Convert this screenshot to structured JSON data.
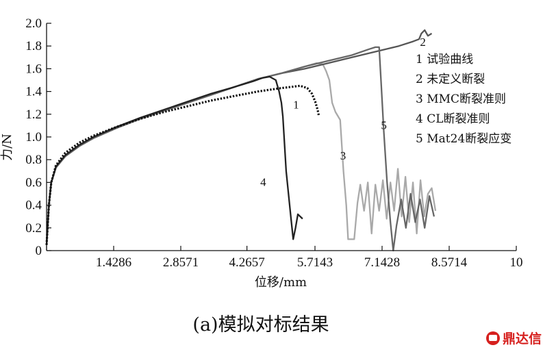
{
  "chart_data": {
    "type": "line",
    "xlabel": "位移/mm",
    "ylabel": "力/N",
    "xlim": [
      0,
      10
    ],
    "ylim": [
      0,
      2.0
    ],
    "x_ticks": [
      0,
      1.4286,
      2.8571,
      4.2657,
      5.7143,
      7.1428,
      8.5714,
      10
    ],
    "x_tick_labels": [
      "1.4286",
      "2.8571",
      "4.2657",
      "5.7143",
      "7.1428",
      "8.5714",
      "10"
    ],
    "y_ticks": [
      0,
      0.2,
      0.4,
      0.6,
      0.8,
      1.0,
      1.2,
      1.4,
      1.6,
      1.8,
      2.0
    ],
    "y_tick_labels": [
      "0",
      "0.2",
      "0.4",
      "0.6",
      "0.8",
      "1.0",
      "1.2",
      "1.4",
      "1.6",
      "1.8",
      "2.0"
    ],
    "grid": false,
    "legend_position": "right",
    "legend": [
      "1 试验曲线",
      "2 未定义断裂",
      "3 MMC断裂准则",
      "4 CL断裂准则",
      "5 Mat24断裂应变"
    ],
    "series": [
      {
        "name": "1 试验曲线",
        "label": "1",
        "color": "#111111",
        "style": "dotted",
        "points": [
          [
            0,
            0.05
          ],
          [
            0.05,
            0.4
          ],
          [
            0.1,
            0.6
          ],
          [
            0.2,
            0.75
          ],
          [
            0.4,
            0.86
          ],
          [
            0.7,
            0.95
          ],
          [
            1.0,
            1.01
          ],
          [
            1.5,
            1.09
          ],
          [
            2.0,
            1.16
          ],
          [
            2.5,
            1.22
          ],
          [
            3.0,
            1.27
          ],
          [
            3.5,
            1.32
          ],
          [
            4.0,
            1.36
          ],
          [
            4.5,
            1.4
          ],
          [
            5.0,
            1.43
          ],
          [
            5.2,
            1.44
          ],
          [
            5.4,
            1.45
          ],
          [
            5.55,
            1.43
          ],
          [
            5.65,
            1.38
          ],
          [
            5.72,
            1.31
          ],
          [
            5.77,
            1.24
          ],
          [
            5.8,
            1.18
          ]
        ]
      },
      {
        "name": "2 未定义断裂",
        "label": "2",
        "color": "#555555",
        "style": "solid",
        "points": [
          [
            0,
            0.05
          ],
          [
            0.05,
            0.4
          ],
          [
            0.1,
            0.6
          ],
          [
            0.2,
            0.73
          ],
          [
            0.4,
            0.83
          ],
          [
            0.7,
            0.92
          ],
          [
            1.0,
            0.99
          ],
          [
            1.5,
            1.08
          ],
          [
            2.0,
            1.16
          ],
          [
            2.5,
            1.23
          ],
          [
            3.0,
            1.3
          ],
          [
            3.5,
            1.37
          ],
          [
            4.0,
            1.44
          ],
          [
            4.5,
            1.51
          ],
          [
            5.0,
            1.56
          ],
          [
            5.5,
            1.6
          ],
          [
            6.0,
            1.65
          ],
          [
            6.5,
            1.7
          ],
          [
            7.0,
            1.75
          ],
          [
            7.5,
            1.8
          ],
          [
            7.8,
            1.84
          ],
          [
            7.93,
            1.86
          ],
          [
            7.98,
            1.91
          ],
          [
            8.05,
            1.94
          ],
          [
            8.12,
            1.89
          ],
          [
            8.2,
            1.91
          ]
        ]
      },
      {
        "name": "3 MMC断裂准则",
        "label": "3",
        "color": "#a9a9a9",
        "style": "solid",
        "points": [
          [
            0,
            0.05
          ],
          [
            0.05,
            0.4
          ],
          [
            0.1,
            0.6
          ],
          [
            0.2,
            0.73
          ],
          [
            0.4,
            0.83
          ],
          [
            0.7,
            0.92
          ],
          [
            1.0,
            0.99
          ],
          [
            1.5,
            1.08
          ],
          [
            2.0,
            1.16
          ],
          [
            2.5,
            1.23
          ],
          [
            3.0,
            1.3
          ],
          [
            3.5,
            1.37
          ],
          [
            4.0,
            1.44
          ],
          [
            4.5,
            1.51
          ],
          [
            5.0,
            1.56
          ],
          [
            5.5,
            1.62
          ],
          [
            5.75,
            1.65
          ],
          [
            5.88,
            1.64
          ],
          [
            5.95,
            1.58
          ],
          [
            6.02,
            1.5
          ],
          [
            6.08,
            1.3
          ],
          [
            6.15,
            1.22
          ],
          [
            6.25,
            1.15
          ],
          [
            6.32,
            0.7
          ],
          [
            6.38,
            0.4
          ],
          [
            6.42,
            0.1
          ],
          [
            6.55,
            0.1
          ],
          [
            6.62,
            0.42
          ],
          [
            6.68,
            0.58
          ],
          [
            6.76,
            0.35
          ],
          [
            6.84,
            0.6
          ],
          [
            6.92,
            0.15
          ],
          [
            7.0,
            0.58
          ],
          [
            7.08,
            0.35
          ],
          [
            7.16,
            0.62
          ],
          [
            7.24,
            0.28
          ],
          [
            7.32,
            0.6
          ],
          [
            7.4,
            0.35
          ],
          [
            7.48,
            0.72
          ],
          [
            7.56,
            0.3
          ],
          [
            7.64,
            0.65
          ],
          [
            7.72,
            0.25
          ],
          [
            7.8,
            0.6
          ],
          [
            7.88,
            0.15
          ],
          [
            7.96,
            0.62
          ],
          [
            8.04,
            0.3
          ],
          [
            8.12,
            0.5
          ],
          [
            8.2,
            0.55
          ],
          [
            8.28,
            0.35
          ]
        ]
      },
      {
        "name": "4 CL断裂准则",
        "label": "4",
        "color": "#222222",
        "style": "solid",
        "points": [
          [
            0,
            0.05
          ],
          [
            0.05,
            0.4
          ],
          [
            0.1,
            0.6
          ],
          [
            0.2,
            0.74
          ],
          [
            0.4,
            0.84
          ],
          [
            0.7,
            0.93
          ],
          [
            1.0,
            1.0
          ],
          [
            1.5,
            1.09
          ],
          [
            2.0,
            1.17
          ],
          [
            2.5,
            1.24
          ],
          [
            3.0,
            1.31
          ],
          [
            3.5,
            1.38
          ],
          [
            4.0,
            1.44
          ],
          [
            4.4,
            1.49
          ],
          [
            4.6,
            1.52
          ],
          [
            4.75,
            1.53
          ],
          [
            4.88,
            1.5
          ],
          [
            4.95,
            1.4
          ],
          [
            5.0,
            1.3
          ],
          [
            5.03,
            1.18
          ],
          [
            5.1,
            0.7
          ],
          [
            5.2,
            0.3
          ],
          [
            5.25,
            0.1
          ],
          [
            5.3,
            0.2
          ],
          [
            5.35,
            0.32
          ],
          [
            5.45,
            0.28
          ]
        ]
      },
      {
        "name": "5 Mat24断裂应变",
        "label": "5",
        "color": "#666666",
        "style": "solid",
        "points": [
          [
            0,
            0.05
          ],
          [
            0.05,
            0.4
          ],
          [
            0.1,
            0.6
          ],
          [
            0.2,
            0.73
          ],
          [
            0.4,
            0.83
          ],
          [
            0.7,
            0.92
          ],
          [
            1.0,
            0.99
          ],
          [
            1.5,
            1.08
          ],
          [
            2.0,
            1.16
          ],
          [
            2.5,
            1.23
          ],
          [
            3.0,
            1.3
          ],
          [
            3.5,
            1.37
          ],
          [
            4.0,
            1.44
          ],
          [
            4.5,
            1.51
          ],
          [
            5.0,
            1.56
          ],
          [
            5.5,
            1.62
          ],
          [
            6.0,
            1.67
          ],
          [
            6.5,
            1.72
          ],
          [
            6.85,
            1.77
          ],
          [
            7.0,
            1.79
          ],
          [
            7.08,
            1.79
          ],
          [
            7.12,
            1.5
          ],
          [
            7.18,
            1.05
          ],
          [
            7.25,
            0.6
          ],
          [
            7.32,
            0.25
          ],
          [
            7.38,
            0.0
          ],
          [
            7.45,
            0.22
          ],
          [
            7.55,
            0.45
          ],
          [
            7.65,
            0.2
          ],
          [
            7.75,
            0.5
          ],
          [
            7.85,
            0.25
          ],
          [
            7.95,
            0.45
          ],
          [
            8.05,
            0.2
          ],
          [
            8.15,
            0.48
          ],
          [
            8.25,
            0.3
          ]
        ]
      }
    ]
  },
  "curve_labels": [
    {
      "text": "1",
      "series": 0
    },
    {
      "text": "2",
      "series": 1
    },
    {
      "text": "3",
      "series": 2
    },
    {
      "text": "4",
      "series": 3
    },
    {
      "text": "5",
      "series": 4
    }
  ],
  "caption": "(a)模拟对标结果",
  "logo": {
    "text": "鼎达信",
    "color": "#d6201e"
  }
}
